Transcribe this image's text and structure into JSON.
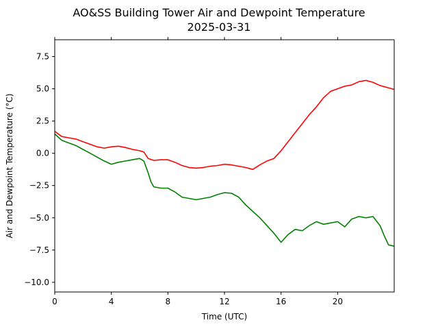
{
  "chart_data": {
    "type": "line",
    "title": "AO&SS Building Tower Air and Dewpoint Temperature",
    "subtitle": "2025-03-31",
    "xlabel": "Time (UTC)",
    "ylabel": "Air and Dewpoint Temperature (°C)",
    "xlim": [
      0,
      24
    ],
    "ylim": [
      -10.75,
      8.8
    ],
    "x_ticks": [
      0,
      4,
      8,
      12,
      16,
      20
    ],
    "x_tick_labels": [
      "0",
      "4",
      "8",
      "12",
      "16",
      "20"
    ],
    "y_ticks": [
      -10.0,
      -7.5,
      -5.0,
      -2.5,
      0.0,
      2.5,
      5.0,
      7.5
    ],
    "y_tick_labels": [
      "−10.0",
      "−7.5",
      "−5.0",
      "−2.5",
      "0.0",
      "2.5",
      "5.0",
      "7.5"
    ],
    "grid": false,
    "series": [
      {
        "color": "#ff0000",
        "x": [
          0,
          0.5,
          1,
          1.5,
          2,
          2.5,
          3,
          3.5,
          4,
          4.5,
          5,
          5.5,
          6,
          6.3,
          6.6,
          7,
          7.5,
          8,
          8.5,
          9,
          9.5,
          10,
          10.5,
          11,
          11.5,
          12,
          12.5,
          13,
          13.5,
          14,
          14.5,
          15,
          15.5,
          16,
          16.5,
          17,
          17.5,
          18,
          18.5,
          19,
          19.5,
          20,
          20.5,
          21,
          21.5,
          22,
          22.5,
          23,
          23.5,
          24
        ],
        "values": [
          1.7,
          1.3,
          1.2,
          1.1,
          0.9,
          0.7,
          0.5,
          0.4,
          0.5,
          0.55,
          0.45,
          0.3,
          0.2,
          0.1,
          -0.4,
          -0.55,
          -0.5,
          -0.5,
          -0.7,
          -0.95,
          -1.1,
          -1.15,
          -1.1,
          -1.0,
          -0.95,
          -0.85,
          -0.9,
          -1.0,
          -1.1,
          -1.25,
          -0.9,
          -0.6,
          -0.4,
          0.2,
          0.9,
          1.6,
          2.3,
          3.0,
          3.6,
          4.3,
          4.8,
          5.0,
          5.2,
          5.3,
          5.55,
          5.65,
          5.5,
          5.25,
          5.1,
          4.95
        ]
      },
      {
        "color": "#008000",
        "x": [
          0,
          0.5,
          1,
          1.5,
          2,
          2.5,
          3,
          3.5,
          4,
          4.5,
          5,
          5.5,
          6,
          6.3,
          6.6,
          6.8,
          7,
          7.5,
          8,
          8.5,
          9,
          9.5,
          10,
          10.5,
          11,
          11.5,
          12,
          12.5,
          13,
          13.5,
          14,
          14.5,
          15,
          15.5,
          16,
          16.5,
          17,
          17.5,
          18,
          18.5,
          19,
          19.5,
          20,
          20.5,
          21,
          21.5,
          22,
          22.5,
          23,
          23.3,
          23.6,
          24
        ],
        "values": [
          1.5,
          1.0,
          0.8,
          0.6,
          0.3,
          0.0,
          -0.3,
          -0.6,
          -0.85,
          -0.7,
          -0.6,
          -0.5,
          -0.4,
          -0.6,
          -1.5,
          -2.2,
          -2.6,
          -2.7,
          -2.7,
          -3.0,
          -3.4,
          -3.5,
          -3.6,
          -3.5,
          -3.4,
          -3.2,
          -3.05,
          -3.1,
          -3.4,
          -4.0,
          -4.5,
          -5.0,
          -5.6,
          -6.2,
          -6.9,
          -6.3,
          -5.9,
          -6.0,
          -5.6,
          -5.3,
          -5.5,
          -5.4,
          -5.3,
          -5.7,
          -5.1,
          -4.9,
          -5.0,
          -4.9,
          -5.6,
          -6.4,
          -7.1,
          -7.2
        ]
      }
    ]
  }
}
